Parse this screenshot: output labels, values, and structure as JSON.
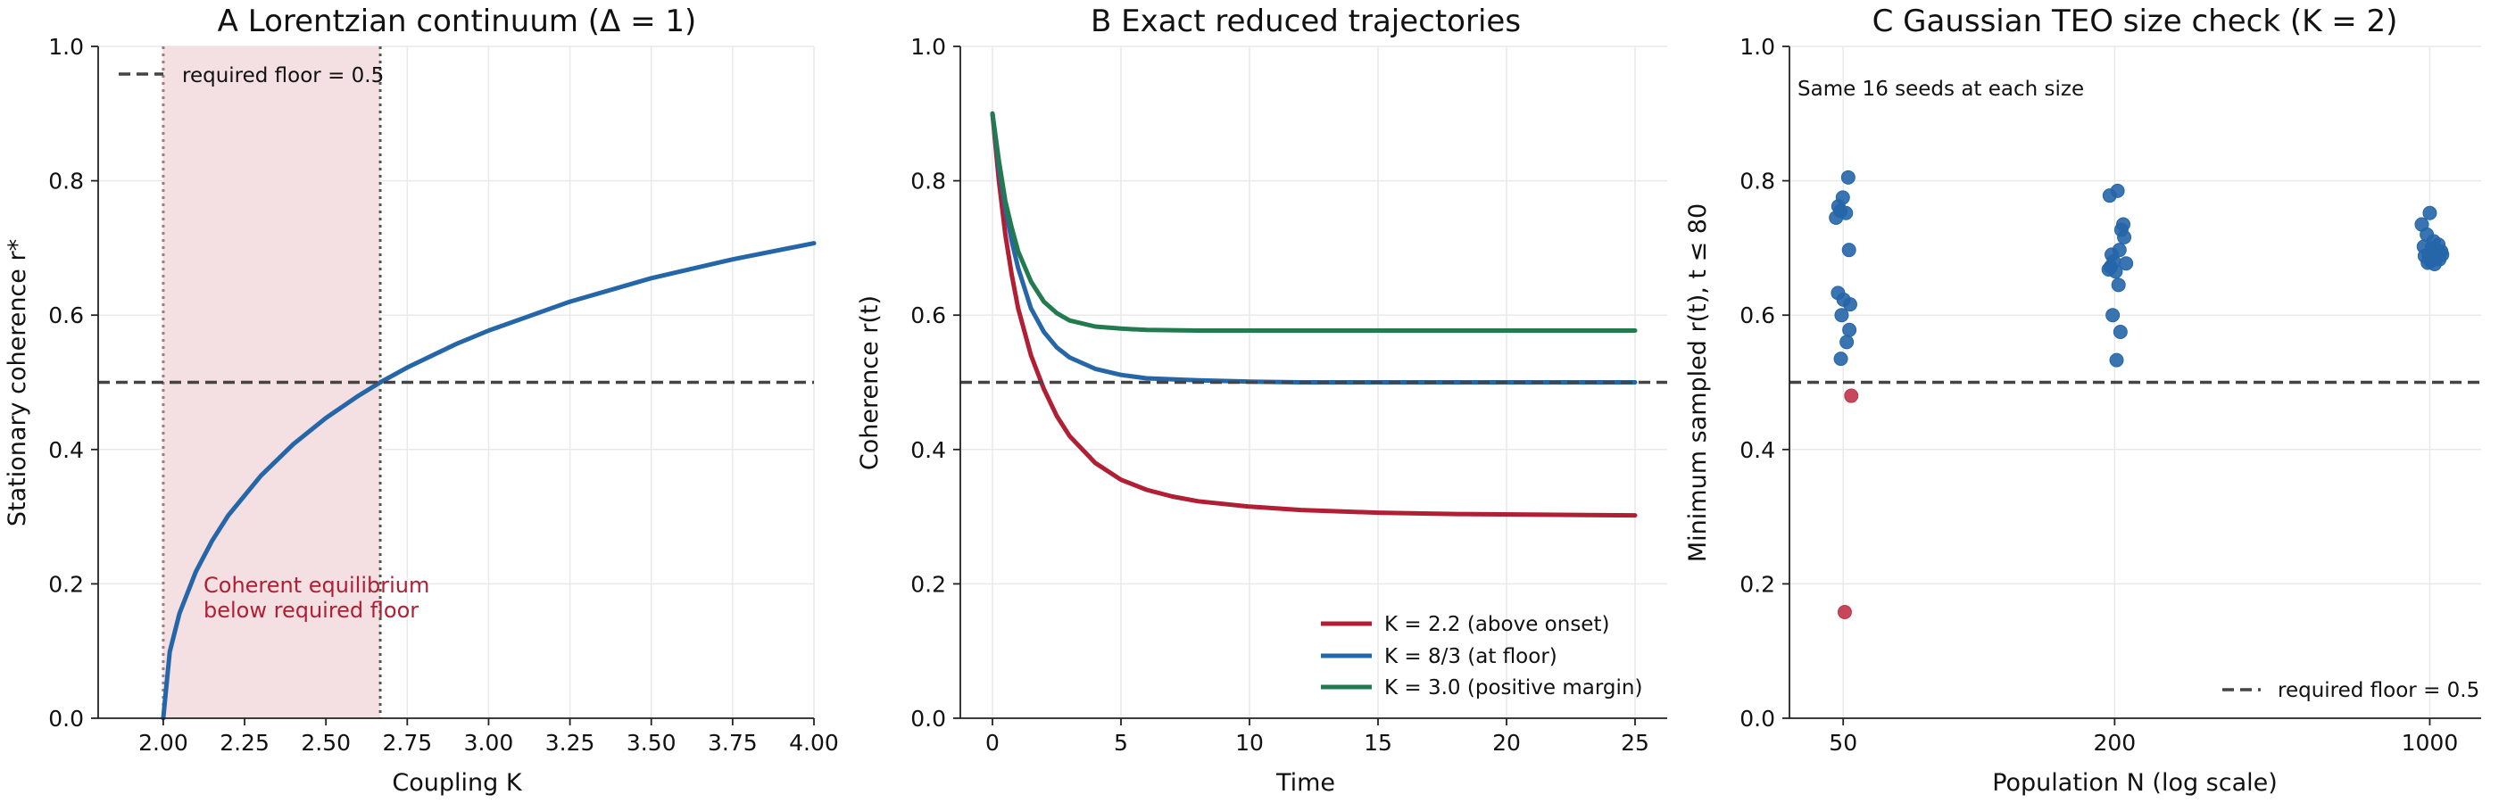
{
  "chart_data": [
    {
      "id": "A",
      "type": "line",
      "title": "A  Lorentzian continuum (Δ = 1)",
      "xlabel": "Coupling K",
      "ylabel": "Stationary coherence r*",
      "xlim": [
        1.8,
        4.0
      ],
      "ylim": [
        0.0,
        1.0
      ],
      "xticks": [
        2.0,
        2.25,
        2.5,
        2.75,
        3.0,
        3.25,
        3.5,
        3.75,
        4.0
      ],
      "xtick_labels": [
        "2.00",
        "2.25",
        "2.50",
        "2.75",
        "3.00",
        "3.25",
        "3.50",
        "3.75",
        "4.00"
      ],
      "yticks": [
        0.0,
        0.2,
        0.4,
        0.6,
        0.8,
        1.0
      ],
      "ytick_labels": [
        "0.0",
        "0.2",
        "0.4",
        "0.6",
        "0.8",
        "1.0"
      ],
      "grid": true,
      "legend_position": "top-left",
      "series": [
        {
          "name": "",
          "color": "#2566a8",
          "x": [
            2.0,
            2.02,
            2.05,
            2.1,
            2.15,
            2.2,
            2.3,
            2.4,
            2.5,
            2.6,
            2.667,
            2.75,
            2.9,
            3.0,
            3.25,
            3.5,
            3.75,
            4.0
          ],
          "y": [
            0.0,
            0.099,
            0.156,
            0.218,
            0.264,
            0.302,
            0.361,
            0.408,
            0.447,
            0.48,
            0.5,
            0.522,
            0.557,
            0.577,
            0.62,
            0.655,
            0.683,
            0.707
          ]
        }
      ],
      "hline": {
        "y": 0.5,
        "label": "required floor = 0.5",
        "color": "#444444"
      },
      "shaded_region": {
        "x": [
          2.0,
          2.667
        ],
        "color": "#f4dfe3"
      },
      "vlines": [
        {
          "x": 2.0,
          "color": "#9c7a80"
        },
        {
          "x": 2.667,
          "color": "#4a5e4e"
        }
      ],
      "annotation": {
        "lines": [
          "Coherent equilibrium",
          "below required floor"
        ],
        "x": 2.12,
        "y": 0.175,
        "color": "#b01f33"
      }
    },
    {
      "id": "B",
      "type": "line",
      "title": "B  Exact reduced trajectories",
      "xlabel": "Time",
      "ylabel": "Coherence r(t)",
      "xlim": [
        -1.25,
        26.25
      ],
      "ylim": [
        0.0,
        1.0
      ],
      "xticks": [
        0,
        5,
        10,
        15,
        20,
        25
      ],
      "xtick_labels": [
        "0",
        "5",
        "10",
        "15",
        "20",
        "25"
      ],
      "yticks": [
        0.0,
        0.2,
        0.4,
        0.6,
        0.8,
        1.0
      ],
      "ytick_labels": [
        "0.0",
        "0.2",
        "0.4",
        "0.6",
        "0.8",
        "1.0"
      ],
      "grid": true,
      "legend_position": "bottom-right",
      "hline": {
        "y": 0.5,
        "color": "#444444"
      },
      "series": [
        {
          "name": "K = 2.2 (above onset)",
          "color": "#b01f33",
          "x": [
            0,
            0.25,
            0.5,
            0.75,
            1,
            1.5,
            2,
            2.5,
            3,
            4,
            5,
            6,
            7,
            8,
            10,
            12,
            15,
            18,
            21,
            25
          ],
          "y": [
            0.9,
            0.8,
            0.72,
            0.66,
            0.61,
            0.54,
            0.49,
            0.45,
            0.42,
            0.38,
            0.355,
            0.34,
            0.33,
            0.323,
            0.315,
            0.31,
            0.306,
            0.304,
            0.303,
            0.302
          ]
        },
        {
          "name": "K = 8/3 (at floor)",
          "color": "#2566a8",
          "x": [
            0,
            0.25,
            0.5,
            0.75,
            1,
            1.5,
            2,
            2.5,
            3,
            4,
            5,
            6,
            8,
            10,
            12,
            15,
            20,
            25
          ],
          "y": [
            0.9,
            0.82,
            0.76,
            0.71,
            0.67,
            0.61,
            0.575,
            0.552,
            0.537,
            0.52,
            0.511,
            0.506,
            0.503,
            0.501,
            0.5,
            0.5,
            0.5,
            0.5
          ]
        },
        {
          "name": "K = 3.0 (positive margin)",
          "color": "#237a4e",
          "x": [
            0,
            0.25,
            0.5,
            0.75,
            1,
            1.5,
            2,
            2.5,
            3,
            4,
            5,
            6,
            8,
            10,
            15,
            20,
            25
          ],
          "y": [
            0.9,
            0.83,
            0.77,
            0.73,
            0.695,
            0.65,
            0.62,
            0.603,
            0.592,
            0.583,
            0.58,
            0.578,
            0.577,
            0.577,
            0.577,
            0.577,
            0.577
          ]
        }
      ]
    },
    {
      "id": "C",
      "type": "scatter",
      "title": "C  Gaussian TEO size check (K = 2)",
      "xlabel": "Population N (log scale)",
      "ylabel": "Minimum sampled r(t), t ≤ 80",
      "x_scale": "log",
      "xlim": [
        38,
        1300
      ],
      "ylim": [
        0.0,
        1.0
      ],
      "xticks": [
        50,
        200,
        1000
      ],
      "xtick_labels": [
        "50",
        "200",
        "1000"
      ],
      "yticks": [
        0.0,
        0.2,
        0.4,
        0.6,
        0.8,
        1.0
      ],
      "ytick_labels": [
        "0.0",
        "0.2",
        "0.4",
        "0.6",
        "0.8",
        "1.0"
      ],
      "grid": true,
      "legend_position": "bottom-right",
      "hline": {
        "y": 0.5,
        "label": "required floor = 0.5",
        "color": "#444444"
      },
      "annotation": {
        "lines": [
          "Same 16 seeds at each size"
        ],
        "x": 45,
        "y": 0.93,
        "color": "#111111"
      },
      "series": [
        {
          "name": "",
          "color": "#2566a8",
          "x": [
            48.2,
            48.8,
            49.3,
            49.9,
            51.3,
            50.7,
            51.5,
            51.8,
            50.9,
            49.6,
            48.7,
            50.1,
            49.4,
            51.6
          ],
          "y": [
            0.745,
            0.762,
            0.755,
            0.775,
            0.805,
            0.752,
            0.697,
            0.616,
            0.56,
            0.6,
            0.633,
            0.623,
            0.535,
            0.578
          ]
        },
        {
          "name": "",
          "color": "#c0334a",
          "x": [
            52.1,
            50.4
          ],
          "y": [
            0.48,
            0.158
          ]
        },
        {
          "name": "",
          "color": "#2566a8",
          "x": [
            195,
            203,
            197,
            205,
            209,
            199,
            194,
            201,
            196,
            207,
            210,
            212,
            204,
            198,
            206,
            202
          ],
          "y": [
            0.778,
            0.785,
            0.69,
            0.697,
            0.735,
            0.68,
            0.668,
            0.665,
            0.672,
            0.727,
            0.716,
            0.677,
            0.645,
            0.6,
            0.575,
            0.533
          ]
        },
        {
          "name": "",
          "color": "#2566a8",
          "x": [
            960,
            1000,
            985,
            1020,
            1045,
            1060,
            995,
            1010,
            975,
            1035,
            1050,
            1005,
            990,
            1025,
            1065,
            970
          ],
          "y": [
            0.735,
            0.752,
            0.72,
            0.71,
            0.705,
            0.695,
            0.69,
            0.7,
            0.688,
            0.685,
            0.683,
            0.68,
            0.678,
            0.676,
            0.69,
            0.702
          ]
        }
      ]
    }
  ]
}
